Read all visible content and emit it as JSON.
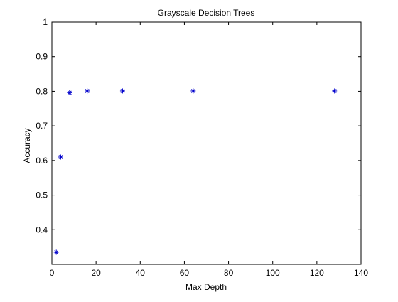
{
  "chart_data": {
    "type": "scatter",
    "title": "Grayscale Decision Trees",
    "xlabel": "Max Depth",
    "ylabel": "Accuracy",
    "xlim": [
      0,
      140
    ],
    "ylim": [
      0.3,
      1
    ],
    "xticks": [
      0,
      20,
      40,
      60,
      80,
      100,
      120,
      140
    ],
    "xtick_labels": [
      "0",
      "20",
      "40",
      "60",
      "80",
      "100",
      "120",
      "140"
    ],
    "yticks": [
      0.4,
      0.5,
      0.6,
      0.7,
      0.8,
      0.9,
      1
    ],
    "ytick_labels": [
      "0.4",
      "0.5",
      "0.6",
      "0.7",
      "0.8",
      "0.9",
      "1"
    ],
    "grid": false,
    "marker": "asterisk",
    "marker_color": "#0000cc",
    "series": [
      {
        "x": [
          2,
          4,
          8,
          16,
          32,
          64,
          128
        ],
        "y": [
          0.335,
          0.61,
          0.796,
          0.801,
          0.801,
          0.801,
          0.801
        ]
      }
    ]
  }
}
